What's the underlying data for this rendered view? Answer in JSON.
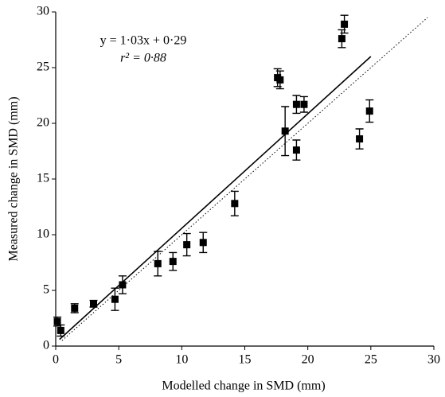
{
  "chart_data": {
    "type": "scatter",
    "xlabel": "Modelled change in SMD (mm)",
    "ylabel": "Measured change in SMD (mm)",
    "annotations": [
      "y = 1·03x + 0·29",
      "r² = 0·88"
    ],
    "x": [
      0.13,
      0.4,
      1.5,
      3.0,
      4.7,
      5.3,
      8.1,
      9.3,
      10.4,
      11.7,
      14.2,
      17.6,
      17.8,
      18.2,
      19.1,
      19.7,
      19.1,
      22.7,
      22.9,
      24.1,
      24.9
    ],
    "series": [
      {
        "color": "#000000",
        "values": [
          2.2,
          1.4,
          3.4,
          3.8,
          4.2,
          5.5,
          7.4,
          7.6,
          9.1,
          9.3,
          12.8,
          24.1,
          23.9,
          19.3,
          21.7,
          21.7,
          17.6,
          27.6,
          28.9,
          18.6,
          21.1
        ],
        "errors": [
          0.4,
          0.5,
          0.4,
          0.3,
          1.0,
          0.8,
          1.1,
          0.8,
          1.0,
          0.9,
          1.1,
          0.8,
          0.8,
          2.2,
          0.8,
          0.7,
          0.9,
          0.8,
          0.8,
          0.9,
          1.0
        ]
      }
    ],
    "lines": [
      {
        "x": [
          0.3,
          25
        ],
        "y": [
          0.6,
          26.0
        ],
        "style": "solid"
      },
      {
        "x": [
          0.5,
          29.5
        ],
        "y": [
          0.5,
          29.5
        ],
        "style": "dotted"
      }
    ],
    "xlim": [
      0,
      30
    ],
    "ylim": [
      0,
      30
    ],
    "xticks": [
      0,
      5,
      10,
      15,
      20,
      25,
      30
    ],
    "yticks": [
      0,
      5,
      10,
      15,
      20,
      25,
      30
    ],
    "grid": false
  }
}
